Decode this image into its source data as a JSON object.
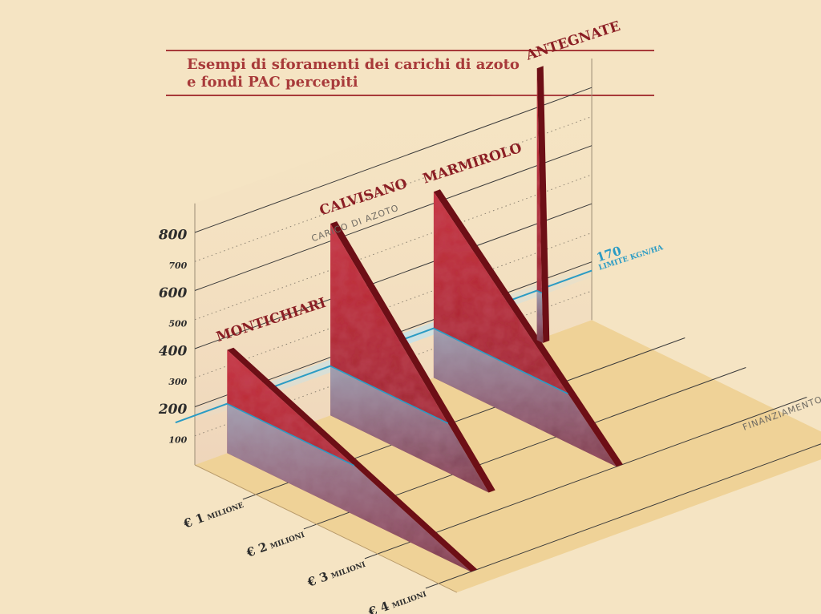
{
  "title": "Esempi di sforamenti dei carichi di azoto\ne fondi PAC percepiti",
  "chart_data": {
    "type": "area",
    "ylabel": "CARICO DI AZOTO",
    "xlabel": "FINANZIAMENTO",
    "y_ticks": [
      "800",
      "700",
      "600",
      "500",
      "400",
      "300",
      "200",
      "100"
    ],
    "y_major": [
      800,
      600,
      400,
      200
    ],
    "y_minor": [
      700,
      500,
      300,
      100
    ],
    "x_categories": [
      "€ 1 MILIONE",
      "€ 2 MILIONI",
      "€ 3 MILIONI",
      "€ 4 MILIONI"
    ],
    "x_category_parts": [
      {
        "num": "€ 1",
        "unit": "MILIONE"
      },
      {
        "num": "€ 2",
        "unit": "MILIONI"
      },
      {
        "num": "€ 3",
        "unit": "MILIONI"
      },
      {
        "num": "€ 4",
        "unit": "MILIONI"
      }
    ],
    "limit": {
      "value": 170,
      "label": "170",
      "unit_label": "LIMITE KGN/HA"
    },
    "ylim": [
      0,
      900
    ],
    "xlim": [
      0,
      4
    ],
    "series": [
      {
        "name": "MONTICHIARI",
        "peak": 355,
        "funding": 4.0
      },
      {
        "name": "CALVISANO",
        "peak": 660,
        "funding": 2.6
      },
      {
        "name": "MARMIROLO",
        "peak": 640,
        "funding": 3.0
      },
      {
        "name": "ANTEGNATE",
        "peak": 935,
        "funding": 0.1
      }
    ],
    "colors": {
      "shape": "#b42530",
      "shape_dark": "#6d0f16",
      "limit": "#2a9bc4",
      "floor": "#edcf8f",
      "background": "#f5e4c3"
    }
  }
}
